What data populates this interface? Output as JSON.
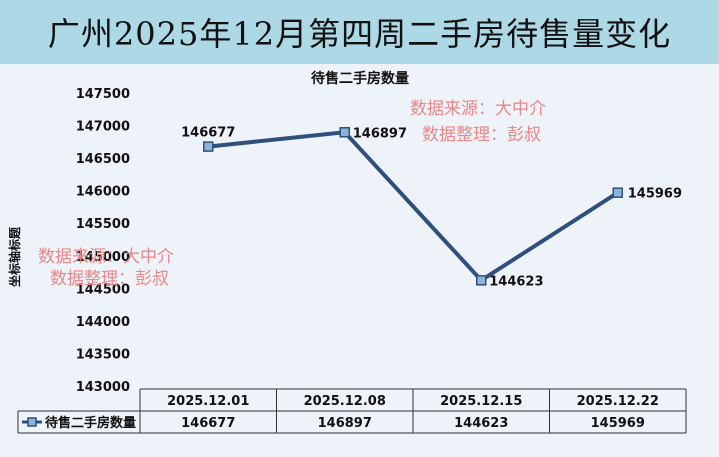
{
  "banner_title": "广州2025年12月第四周二手房待售量变化",
  "chart_data": {
    "type": "line",
    "title": "待售二手房数量",
    "ylabel": "坐标轴标题",
    "xlabel": "",
    "categories": [
      "2025.12.01",
      "2025.12.08",
      "2025.12.15",
      "2025.12.22"
    ],
    "series": [
      {
        "name": "待售二手房数量",
        "values": [
          146677,
          146897,
          144623,
          145969
        ],
        "color": "#2f4f7f"
      }
    ],
    "ylim": [
      143000,
      147500
    ],
    "yticks": [
      147500,
      147000,
      146500,
      146000,
      145500,
      145000,
      144500,
      144000,
      143500,
      143000
    ],
    "grid": false,
    "data_table": true
  },
  "watermarks": [
    {
      "line1": "数据来源：大中介",
      "line2": "数据整理：彭叔"
    },
    {
      "line1": "数据来源：大中介",
      "line2": "数据整理：彭叔"
    }
  ]
}
